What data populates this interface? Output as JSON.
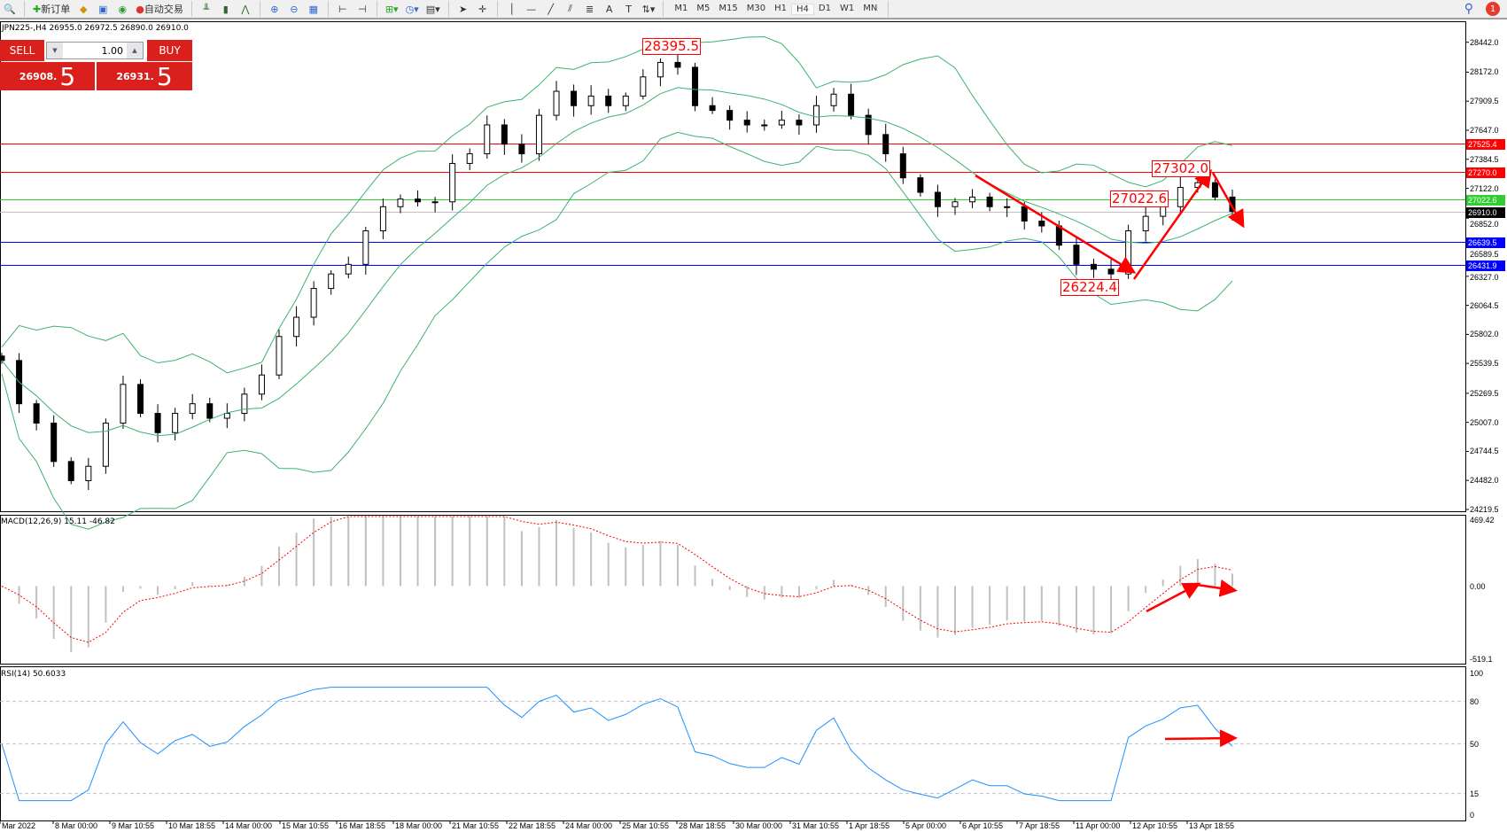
{
  "toolbar": {
    "new_order": "新订单",
    "auto_trading": "自动交易",
    "timeframes": [
      "M1",
      "M5",
      "M15",
      "M30",
      "H1",
      "H4",
      "D1",
      "W1",
      "MN"
    ],
    "active_timeframe": "H4",
    "notifications": "1"
  },
  "symbol_line": "JPN225-,H4  26955.0 26972.5 26890.0 26910.0",
  "trade_panel": {
    "sell_label": "SELL",
    "buy_label": "BUY",
    "lot": "1.00",
    "sell_price_main": "26908.",
    "sell_price_big": "5",
    "buy_price_main": "26931.",
    "buy_price_big": "5"
  },
  "price_axis": [
    "28442.0",
    "28172.0",
    "27909.5",
    "27647.0",
    "27384.5",
    "27122.0",
    "26852.0",
    "26589.5",
    "26327.0",
    "26064.5",
    "25802.0",
    "25539.5",
    "25269.5",
    "25007.0",
    "24744.5",
    "24482.0",
    "24219.5"
  ],
  "levels": [
    {
      "value": "27525.4",
      "color": "#ff0000"
    },
    {
      "value": "27270.0",
      "color": "#ff0000"
    },
    {
      "value": "27022.6",
      "color": "#32cd32"
    },
    {
      "value": "26910.0",
      "color": "#000000",
      "line": "#c0c0c0"
    },
    {
      "value": "26639.5",
      "color": "#0000ff"
    },
    {
      "value": "26431.9",
      "color": "#0000ff"
    }
  ],
  "annotations": [
    "28395.5",
    "27302.0",
    "27022.6",
    "26224.4"
  ],
  "macd": {
    "label": "MACD(12,26,9) 15.11 -46.82",
    "axis": [
      "469.42",
      "0.00",
      "-519.1"
    ],
    "max": 469.42,
    "min": -519.1
  },
  "rsi": {
    "label": "RSI(14) 50.6033",
    "axis": [
      "100",
      "80",
      "50",
      "15",
      "0"
    ],
    "levels": [
      80,
      50,
      15
    ]
  },
  "time_axis": [
    "Mar 2022",
    "8 Mar 00:00",
    "9 Mar 10:55",
    "10 Mar 18:55",
    "14 Mar 00:00",
    "15 Mar 10:55",
    "16 Mar 18:55",
    "18 Mar 00:00",
    "21 Mar 10:55",
    "22 Mar 18:55",
    "24 Mar 00:00",
    "25 Mar 10:55",
    "28 Mar 18:55",
    "30 Mar 00:00",
    "31 Mar 10:55",
    "1 Apr 18:55",
    "5 Apr 00:00",
    "6 Apr 10:55",
    "7 Apr 18:55",
    "11 Apr 00:00",
    "12 Apr 10:55",
    "13 Apr 18:55"
  ],
  "colors": {
    "bands": "#3cb371",
    "macd_hist": "#c0c0c0",
    "macd_signal": "#ff0000",
    "rsi": "#1e90ff",
    "arrows": "#ff0000"
  },
  "chart_data": {
    "type": "candlestick",
    "price_range": [
      24219.5,
      28442.0
    ],
    "closes": [
      25566,
      25175,
      25000,
      24653,
      24480,
      24610,
      25000,
      25350,
      25088,
      24914,
      25088,
      25175,
      25044,
      25088,
      25262,
      25435,
      25783,
      25957,
      26217,
      26348,
      26435,
      26738,
      26956,
      27025,
      27000,
      27000,
      27347,
      27434,
      27695,
      27521,
      27434,
      27782,
      27999,
      27869,
      27956,
      27869,
      27956,
      28129,
      28260,
      28216,
      27869,
      27826,
      27738,
      27695,
      27695,
      27738,
      27695,
      27869,
      27973,
      27782,
      27608,
      27434,
      27217,
      27086,
      26956,
      27000,
      27043,
      26956,
      26956,
      26826,
      26782,
      26608,
      26435,
      26391,
      26348,
      26738,
      26869,
      26956,
      27130,
      27173,
      27043,
      26913
    ]
  }
}
